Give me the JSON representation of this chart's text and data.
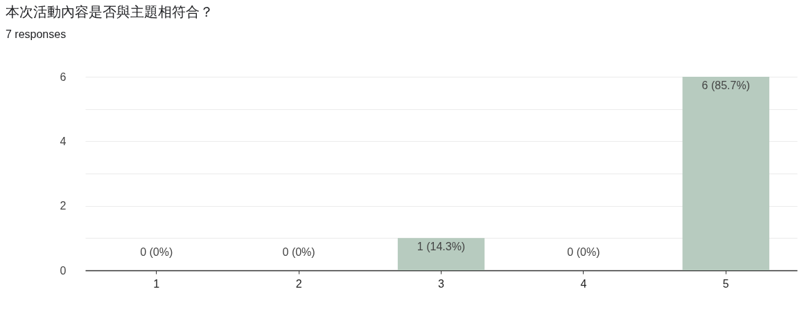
{
  "chart_data": {
    "type": "bar",
    "title": "本次活動內容是否與主題相符合？",
    "subtitle": "7 responses",
    "categories": [
      "1",
      "2",
      "3",
      "4",
      "5"
    ],
    "values": [
      0,
      0,
      1,
      0,
      6
    ],
    "value_labels": [
      "0 (0%)",
      "0 (0%)",
      "1 (14.3%)",
      "0 (0%)",
      "6 (85.7%)"
    ],
    "color": "#b7cbbf",
    "ylim": [
      0,
      6
    ],
    "yticks": [
      0,
      {
        "value": 1,
        "label": null
      },
      2,
      {
        "value": 3,
        "label": null
      },
      4,
      {
        "value": 5,
        "label": null
      },
      6
    ],
    "grid": "y"
  }
}
